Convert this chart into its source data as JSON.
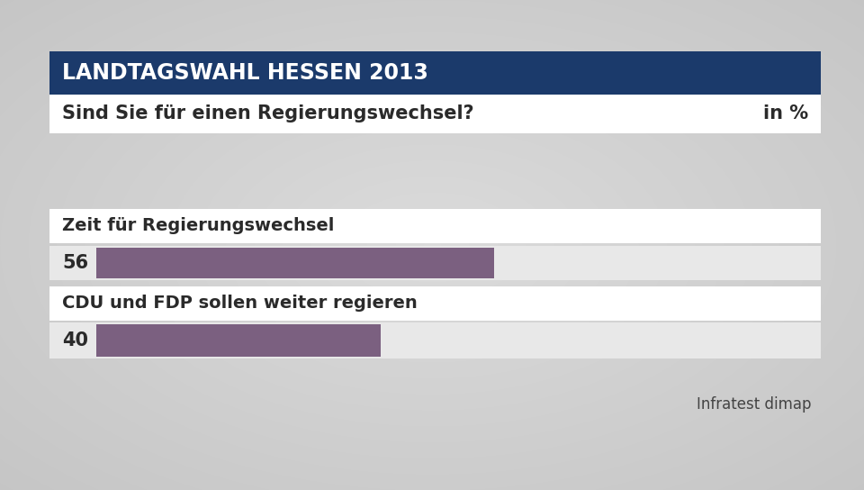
{
  "title": "LANDTAGSWAHL HESSEN 2013",
  "subtitle": "Sind Sie für einen Regierungswechsel?",
  "unit_label": "in %",
  "categories": [
    "Zeit für Regierungswechsel",
    "CDU und FDP sollen weiter regieren"
  ],
  "values": [
    56,
    40
  ],
  "bar_color": "#7B6080",
  "title_bg_color": "#1b3a6b",
  "title_text_color": "#ffffff",
  "subtitle_text_color": "#2a2a2a",
  "bar_label_color": "#2a2a2a",
  "background_color": "#c8c8c8",
  "white_bg": "#ffffff",
  "light_bar_bg": "#e8e8e8",
  "source_text": "Infratest dimap",
  "source_color": "#444444",
  "max_value": 100,
  "title_fontsize": 17,
  "subtitle_fontsize": 15,
  "category_fontsize": 14,
  "value_fontsize": 15,
  "source_fontsize": 12,
  "fig_w": 9.6,
  "fig_h": 5.44,
  "dpi": 100
}
